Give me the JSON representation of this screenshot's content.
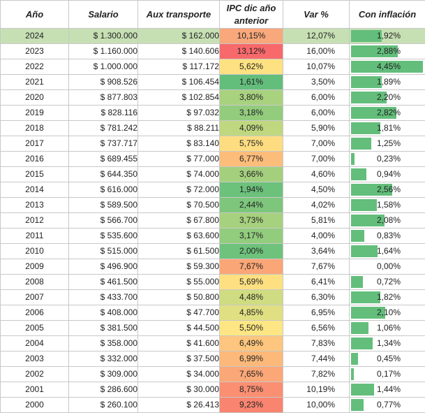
{
  "headers": {
    "year": "Año",
    "salary": "Salario",
    "transport": "Aux transporte",
    "ipc": "IPC dic año anterior",
    "var": "Var %",
    "inflation": "Con inflación"
  },
  "rows": [
    {
      "year": "2024",
      "salary": "$ 1.300.000",
      "transport": "$ 162.000",
      "ipc": "10,15%",
      "var": "12,07%",
      "inflation": "1,92%",
      "inflation_value": 1.92,
      "ipc_color": "#f8a87a",
      "highlight": true
    },
    {
      "year": "2023",
      "salary": "$ 1.160.000",
      "transport": "$ 140.606",
      "ipc": "13,12%",
      "var": "16,00%",
      "inflation": "2,88%",
      "inflation_value": 2.88,
      "ipc_color": "#f8696b",
      "highlight": false
    },
    {
      "year": "2022",
      "salary": "$ 1.000.000",
      "transport": "$ 117.172",
      "ipc": "5,62%",
      "var": "10,07%",
      "inflation": "4,45%",
      "inflation_value": 4.45,
      "ipc_color": "#fee282",
      "highlight": false
    },
    {
      "year": "2021",
      "salary": "$ 908.526",
      "transport": "$ 106.454",
      "ipc": "1,61%",
      "var": "3,50%",
      "inflation": "1,89%",
      "inflation_value": 1.89,
      "ipc_color": "#63be7b",
      "highlight": false
    },
    {
      "year": "2020",
      "salary": "$ 877.803",
      "transport": "$ 102.854",
      "ipc": "3,80%",
      "var": "6,00%",
      "inflation": "2,20%",
      "inflation_value": 2.2,
      "ipc_color": "#a9d27f",
      "highlight": false
    },
    {
      "year": "2019",
      "salary": "$ 828.116",
      "transport": "$ 97.032",
      "ipc": "3,18%",
      "var": "6,00%",
      "inflation": "2,82%",
      "inflation_value": 2.82,
      "ipc_color": "#93cc7d",
      "highlight": false
    },
    {
      "year": "2018",
      "salary": "$ 781.242",
      "transport": "$ 88.211",
      "ipc": "4,09%",
      "var": "5,90%",
      "inflation": "1,81%",
      "inflation_value": 1.81,
      "ipc_color": "#bfd880",
      "highlight": false
    },
    {
      "year": "2017",
      "salary": "$ 737.717",
      "transport": "$ 83.140",
      "ipc": "5,75%",
      "var": "7,00%",
      "inflation": "1,25%",
      "inflation_value": 1.25,
      "ipc_color": "#fedd81",
      "highlight": false
    },
    {
      "year": "2016",
      "salary": "$ 689.455",
      "transport": "$ 77.000",
      "ipc": "6,77%",
      "var": "7,00%",
      "inflation": "0,23%",
      "inflation_value": 0.23,
      "ipc_color": "#fcbd7b",
      "highlight": false
    },
    {
      "year": "2015",
      "salary": "$ 644.350",
      "transport": "$ 74.000",
      "ipc": "3,66%",
      "var": "4,60%",
      "inflation": "0,94%",
      "inflation_value": 0.94,
      "ipc_color": "#a4d07e",
      "highlight": false
    },
    {
      "year": "2014",
      "salary": "$ 616.000",
      "transport": "$ 72.000",
      "ipc": "1,94%",
      "var": "4,50%",
      "inflation": "2,56%",
      "inflation_value": 2.56,
      "ipc_color": "#6cc17b",
      "highlight": false
    },
    {
      "year": "2013",
      "salary": "$ 589.500",
      "transport": "$ 70.500",
      "ipc": "2,44%",
      "var": "4,02%",
      "inflation": "1,58%",
      "inflation_value": 1.58,
      "ipc_color": "#7dc67c",
      "highlight": false
    },
    {
      "year": "2012",
      "salary": "$ 566.700",
      "transport": "$ 67.800",
      "ipc": "3,73%",
      "var": "5,81%",
      "inflation": "2,08%",
      "inflation_value": 2.08,
      "ipc_color": "#a6d17e",
      "highlight": false
    },
    {
      "year": "2011",
      "salary": "$ 535.600",
      "transport": "$ 63.600",
      "ipc": "3,17%",
      "var": "4,00%",
      "inflation": "0,83%",
      "inflation_value": 0.83,
      "ipc_color": "#92cc7d",
      "highlight": false
    },
    {
      "year": "2010",
      "salary": "$ 515.000",
      "transport": "$ 61.500",
      "ipc": "2,00%",
      "var": "3,64%",
      "inflation": "1,64%",
      "inflation_value": 1.64,
      "ipc_color": "#6ec27b",
      "highlight": false
    },
    {
      "year": "2009",
      "salary": "$ 496.900",
      "transport": "$ 59.300",
      "ipc": "7,67%",
      "var": "7,67%",
      "inflation": "0,00%",
      "inflation_value": 0.0,
      "ipc_color": "#fba677",
      "highlight": false
    },
    {
      "year": "2008",
      "salary": "$ 461.500",
      "transport": "$ 55.000",
      "ipc": "5,69%",
      "var": "6,41%",
      "inflation": "0,72%",
      "inflation_value": 0.72,
      "ipc_color": "#fee081",
      "highlight": false
    },
    {
      "year": "2007",
      "salary": "$ 433.700",
      "transport": "$ 50.800",
      "ipc": "4,48%",
      "var": "6,30%",
      "inflation": "1,82%",
      "inflation_value": 1.82,
      "ipc_color": "#cfdc81",
      "highlight": false
    },
    {
      "year": "2006",
      "salary": "$ 408.000",
      "transport": "$ 47.700",
      "ipc": "4,85%",
      "var": "6,95%",
      "inflation": "2,10%",
      "inflation_value": 2.1,
      "ipc_color": "#e0e083",
      "highlight": false
    },
    {
      "year": "2005",
      "salary": "$ 381.500",
      "transport": "$ 44.500",
      "ipc": "5,50%",
      "var": "6,56%",
      "inflation": "1,06%",
      "inflation_value": 1.06,
      "ipc_color": "#fde683",
      "highlight": false
    },
    {
      "year": "2004",
      "salary": "$ 358.000",
      "transport": "$ 41.600",
      "ipc": "6,49%",
      "var": "7,83%",
      "inflation": "1,34%",
      "inflation_value": 1.34,
      "ipc_color": "#fdc57d",
      "highlight": false
    },
    {
      "year": "2003",
      "salary": "$ 332.000",
      "transport": "$ 37.500",
      "ipc": "6,99%",
      "var": "7,44%",
      "inflation": "0,45%",
      "inflation_value": 0.45,
      "ipc_color": "#fcb97a",
      "highlight": false
    },
    {
      "year": "2002",
      "salary": "$ 309.000",
      "transport": "$ 34.000",
      "ipc": "7,65%",
      "var": "7,82%",
      "inflation": "0,17%",
      "inflation_value": 0.17,
      "ipc_color": "#fba777",
      "highlight": false
    },
    {
      "year": "2001",
      "salary": "$ 286.600",
      "transport": "$ 30.000",
      "ipc": "8,75%",
      "var": "10,19%",
      "inflation": "1,44%",
      "inflation_value": 1.44,
      "ipc_color": "#fa8f72",
      "highlight": false
    },
    {
      "year": "2000",
      "salary": "$ 260.100",
      "transport": "$ 26.413",
      "ipc": "9,23%",
      "var": "10,00%",
      "inflation": "0,77%",
      "inflation_value": 0.77,
      "ipc_color": "#f9846f",
      "highlight": false
    }
  ],
  "colors": {
    "highlight_row": "#c6e0b4",
    "data_bar": "#63be7b",
    "grid": "#c8c8c8"
  }
}
